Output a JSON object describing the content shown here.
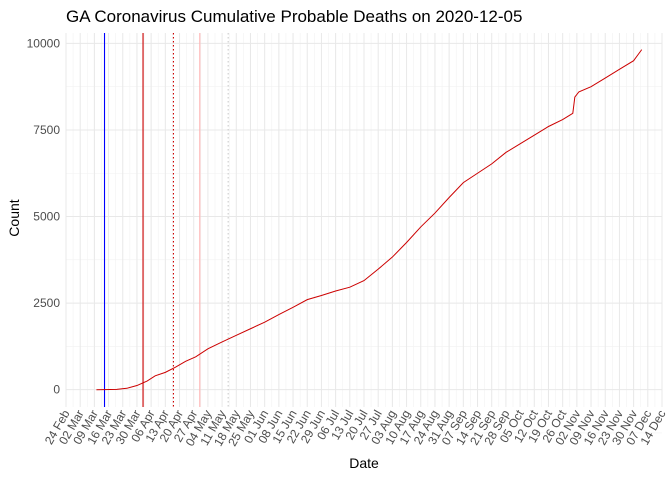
{
  "chart_data": {
    "type": "line",
    "title": "GA Coronavirus Cumulative Probable Deaths on 2020-12-05",
    "xlabel": "Date",
    "ylabel": "Count",
    "xlim": [
      "2020-02-24",
      "2020-12-14"
    ],
    "ylim": [
      -500,
      10300
    ],
    "grid": true,
    "y_ticks": [
      0,
      2500,
      5000,
      7500,
      10000
    ],
    "y_tick_labels": [
      "0",
      "2500",
      "5000",
      "7500",
      "10000"
    ],
    "x_tick_dates": [
      "2020-02-24",
      "2020-03-02",
      "2020-03-09",
      "2020-03-16",
      "2020-03-23",
      "2020-03-30",
      "2020-04-06",
      "2020-04-13",
      "2020-04-20",
      "2020-04-27",
      "2020-05-04",
      "2020-05-11",
      "2020-05-18",
      "2020-05-25",
      "2020-06-01",
      "2020-06-08",
      "2020-06-15",
      "2020-06-22",
      "2020-06-29",
      "2020-07-06",
      "2020-07-13",
      "2020-07-20",
      "2020-07-27",
      "2020-08-03",
      "2020-08-10",
      "2020-08-17",
      "2020-08-24",
      "2020-08-31",
      "2020-09-07",
      "2020-09-14",
      "2020-09-21",
      "2020-09-28",
      "2020-10-05",
      "2020-10-12",
      "2020-10-19",
      "2020-10-26",
      "2020-11-02",
      "2020-11-09",
      "2020-11-16",
      "2020-11-23",
      "2020-11-30",
      "2020-12-07",
      "2020-12-14"
    ],
    "x_tick_labels": [
      "24 Feb",
      "02 Mar",
      "09 Mar",
      "16 Mar",
      "23 Mar",
      "30 Mar",
      "06 Apr",
      "13 Apr",
      "20 Apr",
      "27 Apr",
      "04 May",
      "11 May",
      "18 May",
      "25 May",
      "01 Jun",
      "08 Jun",
      "15 Jun",
      "22 Jun",
      "29 Jun",
      "06 Jul",
      "13 Jul",
      "20 Jul",
      "27 Jul",
      "03 Aug",
      "10 Aug",
      "17 Aug",
      "24 Aug",
      "31 Aug",
      "07 Sep",
      "14 Sep",
      "21 Sep",
      "28 Sep",
      "05 Oct",
      "12 Oct",
      "19 Oct",
      "26 Oct",
      "02 Nov",
      "09 Nov",
      "16 Nov",
      "23 Nov",
      "30 Nov",
      "07 Dec",
      "14 Dec"
    ],
    "reference_lines": [
      {
        "date": "2020-03-14",
        "color": "#0000ff",
        "style": "solid"
      },
      {
        "date": "2020-04-02",
        "color": "#cc0000",
        "style": "solid"
      },
      {
        "date": "2020-04-17",
        "color": "#cc0000",
        "style": "dotted"
      },
      {
        "date": "2020-04-30",
        "color": "#ffb3b3",
        "style": "solid"
      },
      {
        "date": "2020-05-14",
        "color": "#cccccc",
        "style": "dotted"
      }
    ],
    "series": [
      {
        "color": "#cc0000",
        "points": [
          [
            "2020-03-10",
            0
          ],
          [
            "2020-03-20",
            10
          ],
          [
            "2020-03-25",
            40
          ],
          [
            "2020-03-30",
            120
          ],
          [
            "2020-04-04",
            250
          ],
          [
            "2020-04-08",
            400
          ],
          [
            "2020-04-13",
            500
          ],
          [
            "2020-04-18",
            650
          ],
          [
            "2020-04-23",
            820
          ],
          [
            "2020-04-28",
            950
          ],
          [
            "2020-05-04",
            1180
          ],
          [
            "2020-05-11",
            1380
          ],
          [
            "2020-05-18",
            1570
          ],
          [
            "2020-05-25",
            1760
          ],
          [
            "2020-06-01",
            1950
          ],
          [
            "2020-06-08",
            2170
          ],
          [
            "2020-06-15",
            2380
          ],
          [
            "2020-06-22",
            2600
          ],
          [
            "2020-06-29",
            2720
          ],
          [
            "2020-07-06",
            2850
          ],
          [
            "2020-07-13",
            2960
          ],
          [
            "2020-07-20",
            3150
          ],
          [
            "2020-07-27",
            3480
          ],
          [
            "2020-08-03",
            3830
          ],
          [
            "2020-08-10",
            4250
          ],
          [
            "2020-08-17",
            4700
          ],
          [
            "2020-08-24",
            5100
          ],
          [
            "2020-08-31",
            5550
          ],
          [
            "2020-09-07",
            5980
          ],
          [
            "2020-09-14",
            6250
          ],
          [
            "2020-09-21",
            6520
          ],
          [
            "2020-09-28",
            6850
          ],
          [
            "2020-10-05",
            7100
          ],
          [
            "2020-10-12",
            7350
          ],
          [
            "2020-10-19",
            7600
          ],
          [
            "2020-10-26",
            7800
          ],
          [
            "2020-10-31",
            7980
          ],
          [
            "2020-11-01",
            8450
          ],
          [
            "2020-11-03",
            8600
          ],
          [
            "2020-11-09",
            8750
          ],
          [
            "2020-11-16",
            9000
          ],
          [
            "2020-11-23",
            9250
          ],
          [
            "2020-11-30",
            9500
          ],
          [
            "2020-12-04",
            9820
          ]
        ]
      }
    ]
  }
}
